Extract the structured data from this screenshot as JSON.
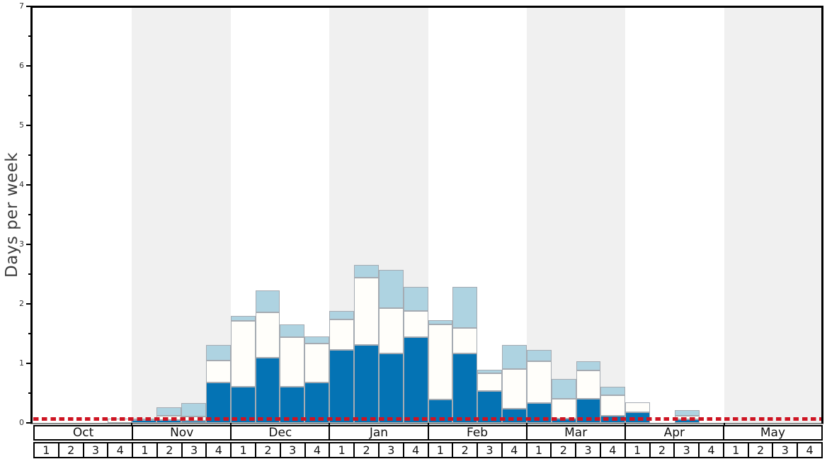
{
  "chart": {
    "ylabel": "Days per week",
    "y_tick_labels": [
      "0",
      "1",
      "2",
      "3",
      "4",
      "5",
      "6",
      "7"
    ],
    "months": [
      "Oct",
      "Nov",
      "Dec",
      "Jan",
      "Feb",
      "Mar",
      "Apr",
      "May"
    ],
    "week_labels": [
      "1",
      "2",
      "3",
      "4"
    ],
    "shaded_month_indices": [
      1,
      3,
      5,
      7
    ],
    "colors": {
      "dark_blue": "#0473b4",
      "mid_white": "#fffefa",
      "light_blue": "#aed3e1",
      "bar_border": "#a5abb2",
      "month_band": "#f0f0f0",
      "reference_red": "#ce1422",
      "axis": "#000000",
      "baseline": "#8a8a8a",
      "tick_text": "#333333",
      "ylabel_text": "#3d3d3d"
    }
  },
  "chart_data": {
    "type": "bar",
    "stacked": true,
    "title": "",
    "xlabel": "",
    "ylabel": "Days per week",
    "ylim": [
      0,
      7
    ],
    "y_major_ticks": [
      0,
      1,
      2,
      3,
      4,
      5,
      6,
      7
    ],
    "y_minor_tick_step": 0.5,
    "grid": false,
    "legend": "none",
    "background_bands": "alternating shaded months: Nov, Jan, Mar, May",
    "x_months": [
      "Oct",
      "Nov",
      "Dec",
      "Jan",
      "Feb",
      "Mar",
      "Apr",
      "May"
    ],
    "weeks_per_month": 4,
    "categories": [
      "Oct w1",
      "Oct w2",
      "Oct w3",
      "Oct w4",
      "Nov w1",
      "Nov w2",
      "Nov w3",
      "Nov w4",
      "Dec w1",
      "Dec w2",
      "Dec w3",
      "Dec w4",
      "Jan w1",
      "Jan w2",
      "Jan w3",
      "Jan w4",
      "Feb w1",
      "Feb w2",
      "Feb w3",
      "Feb w4",
      "Mar w1",
      "Mar w2",
      "Mar w3",
      "Mar w4",
      "Apr w1",
      "Apr w2",
      "Apr w3",
      "Apr w4",
      "May w1",
      "May w2",
      "May w3",
      "May w4"
    ],
    "series": [
      {
        "name": "dark-blue-bottom",
        "color": "#0473b4",
        "values": [
          0,
          0,
          0,
          0,
          0.05,
          0.05,
          0.03,
          0.68,
          0.61,
          1.1,
          0.61,
          0.68,
          1.23,
          1.31,
          1.17,
          1.44,
          0.39,
          1.17,
          0.53,
          0.24,
          0.33,
          0.07,
          0.41,
          0.12,
          0.18,
          0,
          0.06,
          0,
          0,
          0,
          0,
          0
        ]
      },
      {
        "name": "white-middle",
        "color": "#fffefa",
        "values": [
          0,
          0,
          0,
          0.07,
          0.02,
          0.07,
          0.08,
          0.37,
          1.1,
          0.76,
          0.83,
          0.65,
          0.51,
          1.13,
          0.76,
          0.44,
          1.27,
          0.43,
          0.3,
          0.66,
          0.7,
          0.34,
          0.47,
          0.34,
          0.16,
          0,
          0.06,
          0,
          0,
          0,
          0,
          0
        ]
      },
      {
        "name": "light-blue-top",
        "color": "#aed3e1",
        "values": [
          0,
          0,
          0,
          0,
          0,
          0.14,
          0.22,
          0.26,
          0.09,
          0.37,
          0.22,
          0.12,
          0.14,
          0.21,
          0.64,
          0.41,
          0.07,
          0.69,
          0.06,
          0.41,
          0.2,
          0.33,
          0.16,
          0.15,
          0,
          0,
          0.09,
          0,
          0,
          0,
          0,
          0
        ]
      }
    ],
    "bar_totals": [
      0,
      0,
      0,
      0.07,
      0.07,
      0.26,
      0.33,
      1.31,
      1.8,
      2.23,
      1.66,
      1.45,
      1.88,
      2.65,
      2.57,
      2.29,
      1.73,
      2.29,
      0.89,
      1.31,
      1.23,
      0.74,
      1.04,
      0.61,
      0.34,
      0,
      0.21,
      0,
      0,
      0,
      0,
      0
    ],
    "reference_line": {
      "y": 0.05,
      "style": "dashed",
      "color": "#ce1422"
    }
  }
}
